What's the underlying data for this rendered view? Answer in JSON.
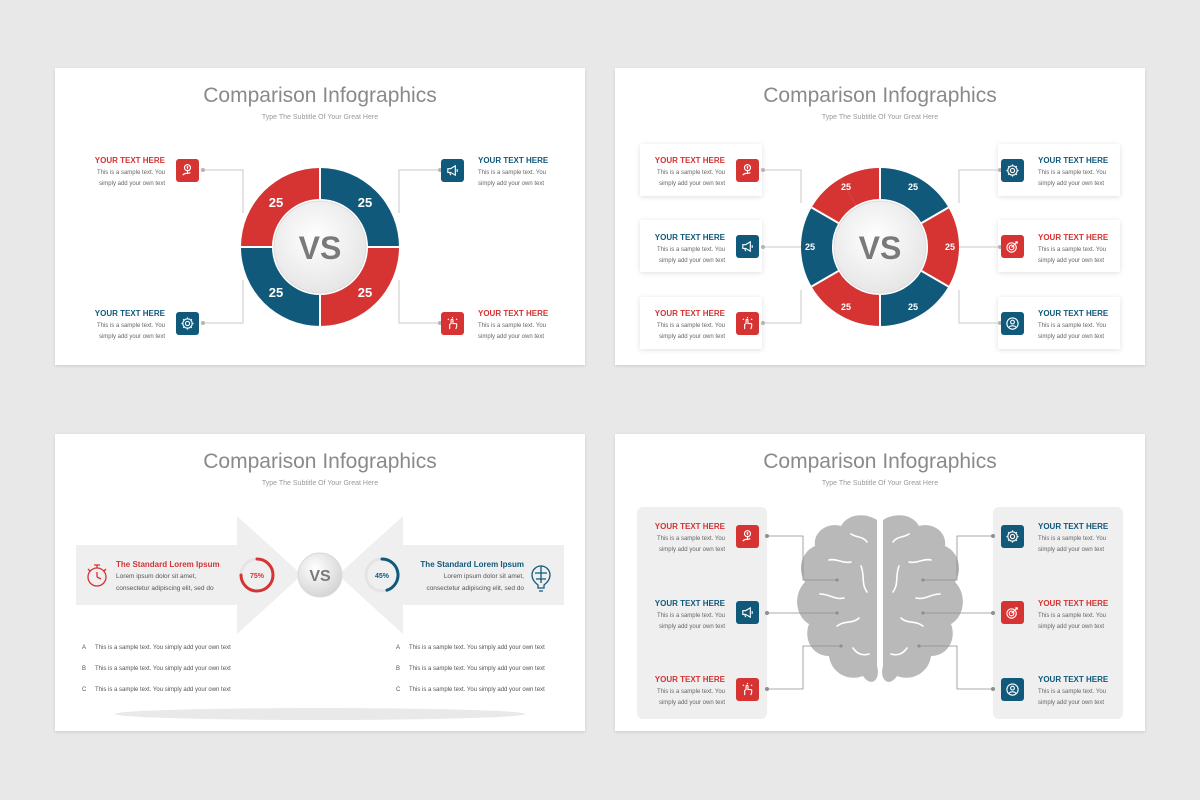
{
  "slides": [
    {
      "title": "Comparison Infographics",
      "subtitle": "Type The Subtitle Of Your Great Here",
      "center": "VS",
      "segments": [
        "25",
        "25",
        "25",
        "25"
      ],
      "items": [
        {
          "heading": "YOUR TEXT HERE",
          "line1": "This is a sample text. You",
          "line2": "simply add your own text",
          "icon": "growth-hand-icon"
        },
        {
          "heading": "YOUR TEXT HERE",
          "line1": "This is a sample text. You",
          "line2": "simply add your own text",
          "icon": "megaphone-icon"
        },
        {
          "heading": "YOUR TEXT HERE",
          "line1": "This is a sample text. You",
          "line2": "simply add your own text",
          "icon": "settings-gear-icon"
        },
        {
          "heading": "YOUR TEXT HERE",
          "line1": "This is a sample text. You",
          "line2": "simply add your own text",
          "icon": "idea-hand-icon"
        }
      ]
    },
    {
      "title": "Comparison Infographics",
      "subtitle": "Type The Subtitle Of Your Great Here",
      "center": "VS",
      "segments": [
        "25",
        "25",
        "25",
        "25",
        "25",
        "25"
      ],
      "items": [
        {
          "heading": "YOUR TEXT HERE",
          "line1": "This is a sample text. You",
          "line2": "simply add your own text",
          "icon": "growth-hand-icon"
        },
        {
          "heading": "YOUR TEXT HERE",
          "line1": "This is a sample text. You",
          "line2": "simply add your own text",
          "icon": "megaphone-icon"
        },
        {
          "heading": "YOUR TEXT HERE",
          "line1": "This is a sample text. You",
          "line2": "simply add your own text",
          "icon": "idea-hand-icon"
        },
        {
          "heading": "YOUR TEXT HERE",
          "line1": "This is a sample text. You",
          "line2": "simply add your own text",
          "icon": "settings-gear-icon"
        },
        {
          "heading": "YOUR TEXT HERE",
          "line1": "This is a sample text. You",
          "line2": "simply add your own text",
          "icon": "target-icon"
        },
        {
          "heading": "YOUR TEXT HERE",
          "line1": "This is a sample text. You",
          "line2": "simply add your own text",
          "icon": "user-badge-icon"
        }
      ]
    },
    {
      "title": "Comparison Infographics",
      "subtitle": "Type The Subtitle Of Your Great Here",
      "center": "VS",
      "left": {
        "heading": "The Standard Lorem Ipsum",
        "line1": "Lorem ipsum dolor sit amet,",
        "line2": "consectetur adipiscing elit, sed do",
        "percent": "75%",
        "percent_value": 75,
        "icon": "stopwatch-icon"
      },
      "right": {
        "heading": "The Standard Lorem Ipsum",
        "line1": "Lorem ipsum dolor sit amet,",
        "line2": "consectetur adipiscing elit, sed do",
        "percent": "45%",
        "percent_value": 45,
        "icon": "brain-bulb-icon"
      },
      "left_rows": [
        {
          "letter": "A",
          "text": "This is a sample text. You simply add your own text"
        },
        {
          "letter": "B",
          "text": "This is a sample text. You simply add your own text"
        },
        {
          "letter": "C",
          "text": "This is a sample text. You simply add your own text"
        }
      ],
      "right_rows": [
        {
          "letter": "A",
          "text": "This is a sample text. You simply add your own text"
        },
        {
          "letter": "B",
          "text": "This is a sample text. You simply add your own text"
        },
        {
          "letter": "C",
          "text": "This is a sample text. You simply add your own text"
        }
      ]
    },
    {
      "title": "Comparison Infographics",
      "subtitle": "Type The Subtitle Of Your Great Here",
      "items": [
        {
          "heading": "YOUR TEXT HERE",
          "line1": "This is a sample text. You",
          "line2": "simply add your own text",
          "icon": "growth-hand-icon"
        },
        {
          "heading": "YOUR TEXT HERE",
          "line1": "This is a sample text. You",
          "line2": "simply add your own text",
          "icon": "megaphone-icon"
        },
        {
          "heading": "YOUR TEXT HERE",
          "line1": "This is a sample text. You",
          "line2": "simply add your own text",
          "icon": "idea-hand-icon"
        },
        {
          "heading": "YOUR TEXT HERE",
          "line1": "This is a sample text. You",
          "line2": "simply add your own text",
          "icon": "settings-gear-icon"
        },
        {
          "heading": "YOUR TEXT HERE",
          "line1": "This is a sample text. You",
          "line2": "simply add your own text",
          "icon": "target-icon"
        },
        {
          "heading": "YOUR TEXT HERE",
          "line1": "This is a sample text. You",
          "line2": "simply add your own text",
          "icon": "user-badge-icon"
        }
      ]
    }
  ],
  "colors": {
    "red": "#d63333",
    "blue": "#11597b",
    "gray": "#b9b9b9",
    "background": "#e8e8e9"
  }
}
